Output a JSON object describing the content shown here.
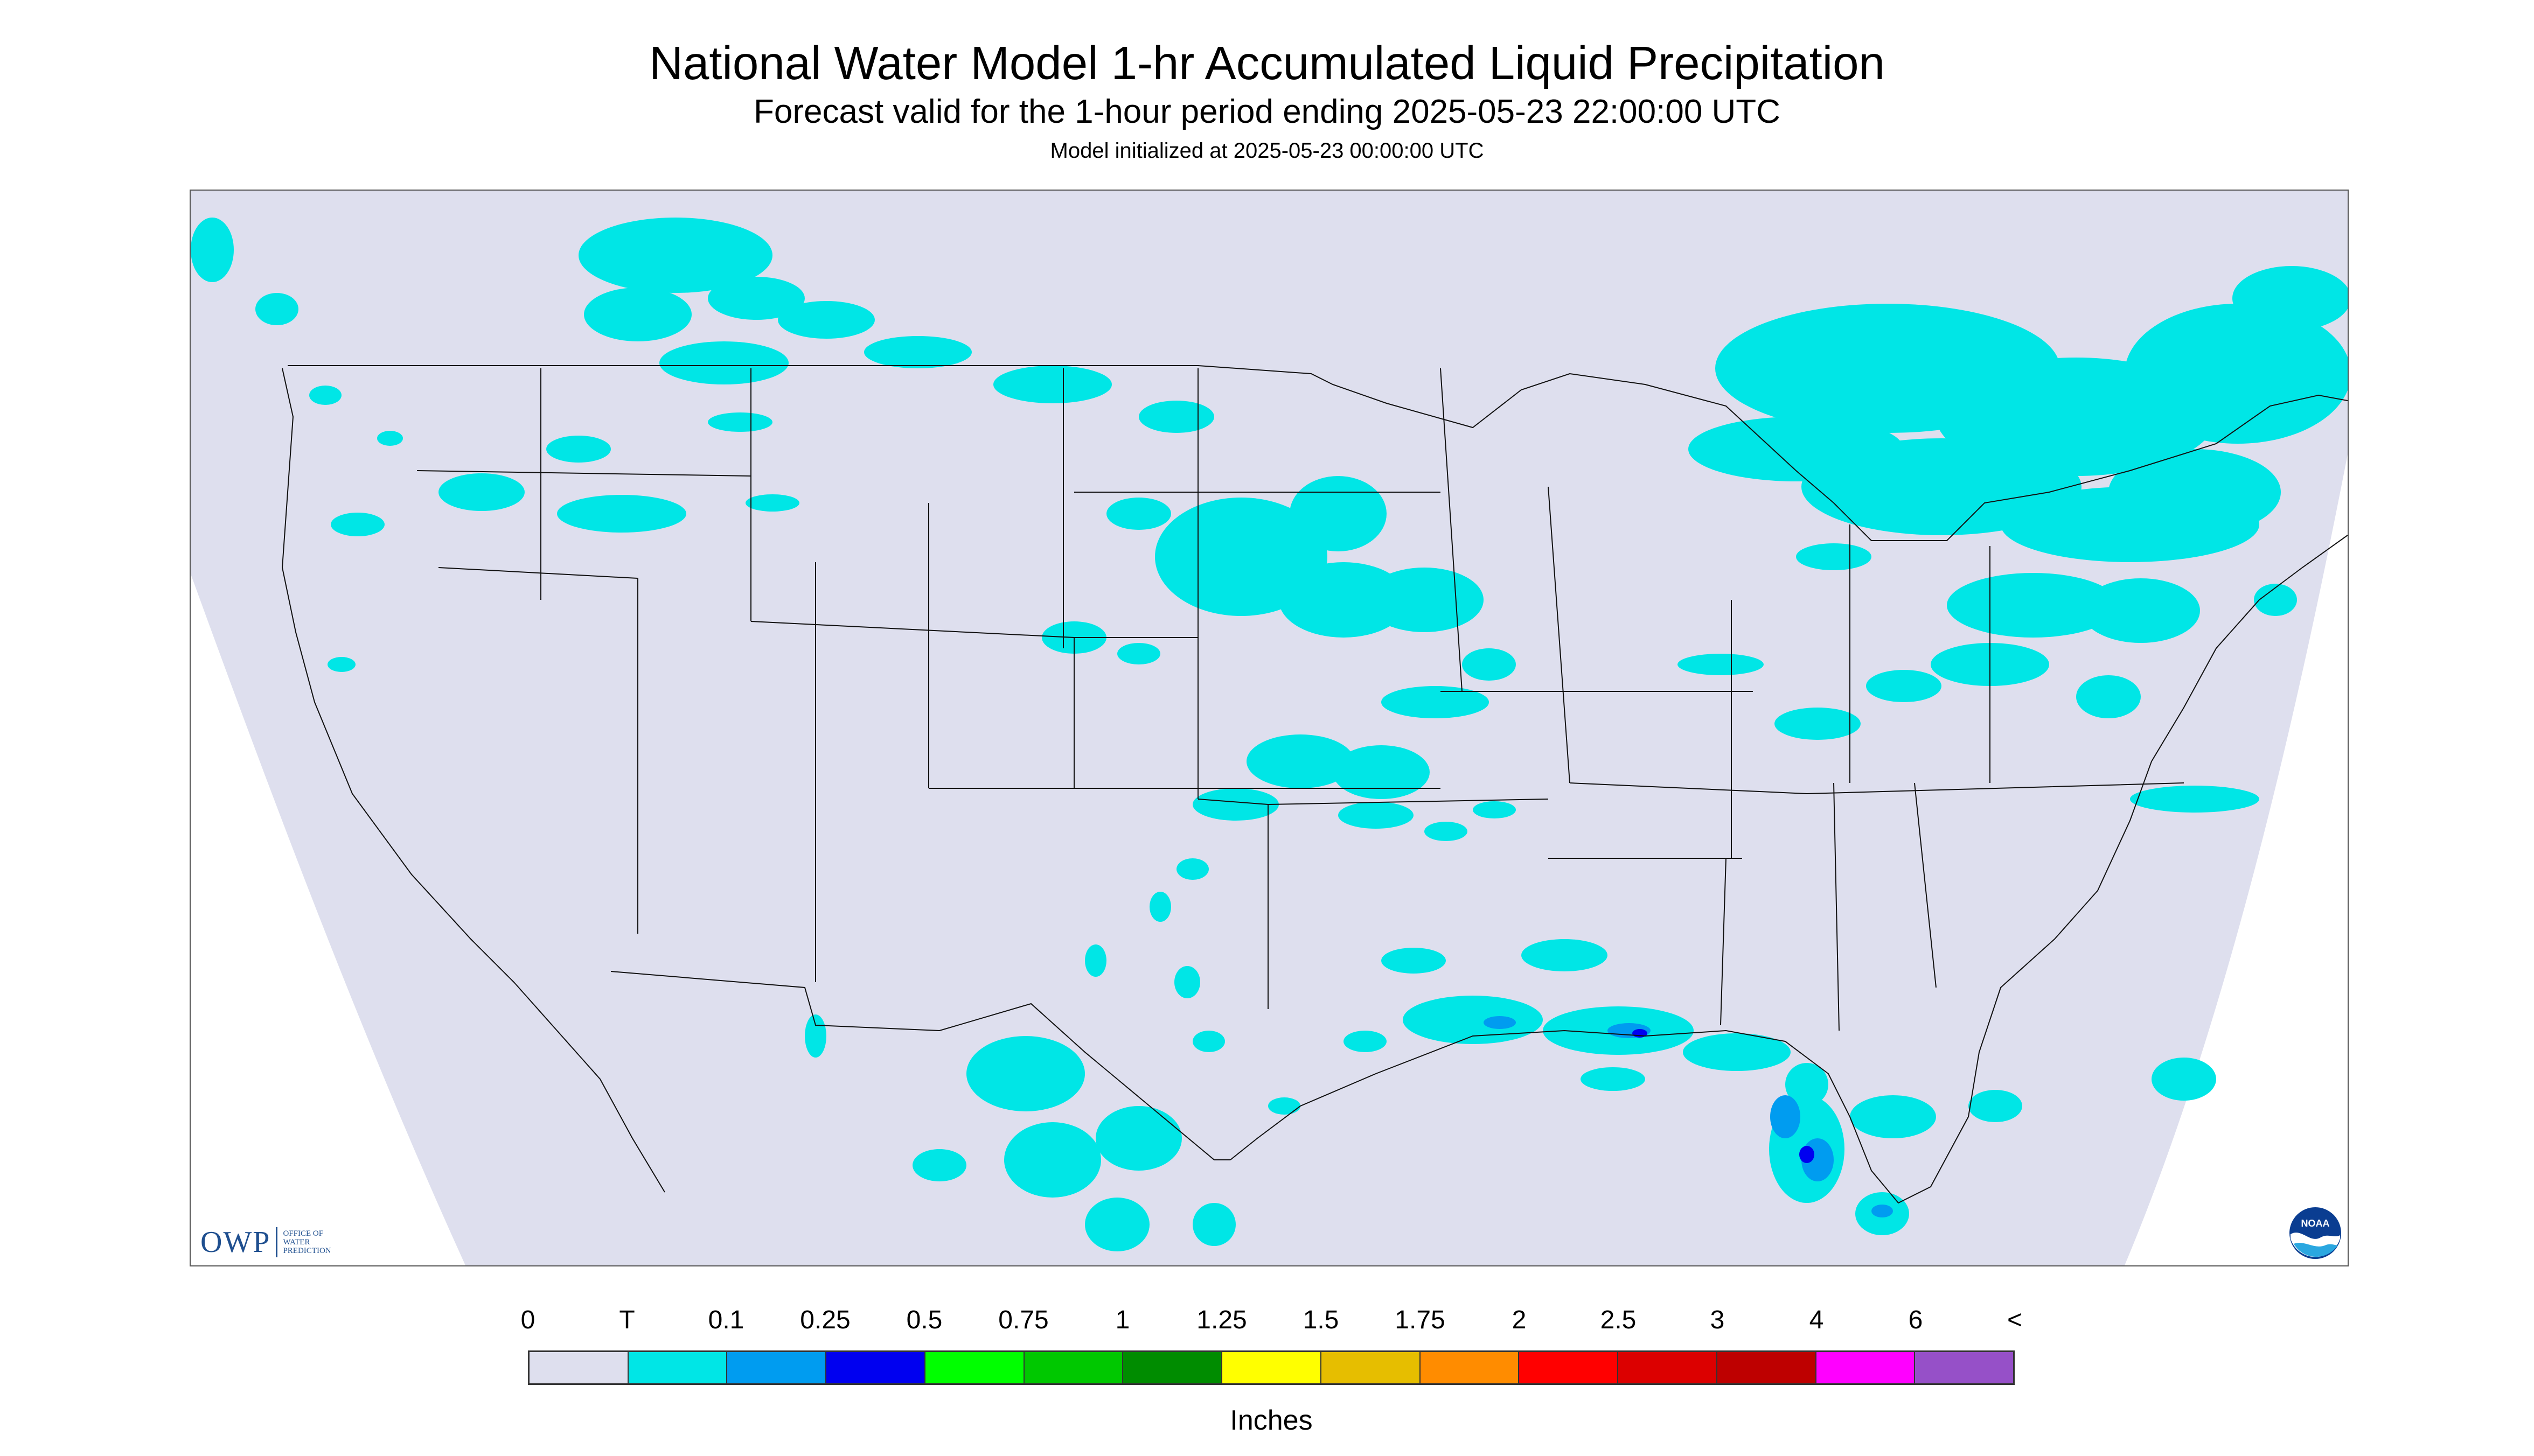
{
  "header": {
    "title": "National Water Model 1-hr Accumulated Liquid Precipitation",
    "subtitle": "Forecast valid for the 1-hour period ending 2025-05-23 22:00:00 UTC",
    "init_line": "Model initialized at 2025-05-23 00:00:00 UTC"
  },
  "map": {
    "domain_color": "#dedfee",
    "outside_color": "#ffffff",
    "boundary_line_color": "#111111",
    "precip_regions": [
      {
        "area": "Pacific Northwest",
        "class": "T"
      },
      {
        "area": "Northern Rockies / Montana",
        "class": "T"
      },
      {
        "area": "Northern Plains (South Dakota, Nebraska, Iowa)",
        "class": "T"
      },
      {
        "area": "Kansas / Oklahoma",
        "class": "T"
      },
      {
        "area": "Great Lakes / Ontario / Quebec",
        "class": "T"
      },
      {
        "area": "New England / Mid-Atlantic",
        "class": "T"
      },
      {
        "area": "Texas / Louisiana Gulf coast",
        "class": "0.1"
      },
      {
        "area": "South Florida",
        "class": "0.25"
      },
      {
        "area": "Northern Mexico",
        "class": "T"
      }
    ]
  },
  "logos": {
    "owp_mark": "OWP",
    "owp_text": [
      "OFFICE OF",
      "WATER",
      "PREDICTION"
    ],
    "noaa_text": "NOAA"
  },
  "legend": {
    "tick_labels": [
      "0",
      "T",
      "0.1",
      "0.25",
      "0.5",
      "0.75",
      "1",
      "1.25",
      "1.5",
      "1.75",
      "2",
      "2.5",
      "3",
      "4",
      "6",
      "<"
    ],
    "colors": [
      "#dedfee",
      "#00e6e6",
      "#009cf0",
      "#0000f0",
      "#00ff00",
      "#00c800",
      "#008c00",
      "#ffff00",
      "#e6be00",
      "#ff8c00",
      "#ff0000",
      "#dc0000",
      "#be0000",
      "#ff00ff",
      "#9650c8"
    ],
    "units": "Inches"
  }
}
